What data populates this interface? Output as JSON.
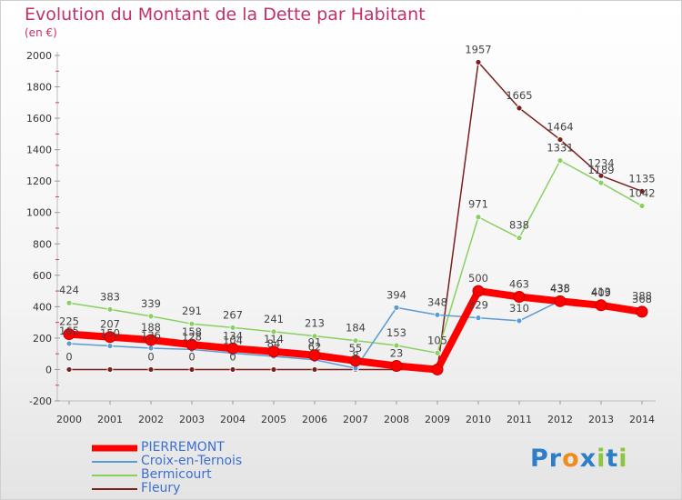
{
  "chart_data": {
    "type": "line",
    "title": "Evolution du Montant de la Dette par Habitant",
    "subtitle": "(en €)",
    "x": [
      "2000",
      "2001",
      "2002",
      "2003",
      "2004",
      "2005",
      "2006",
      "2007",
      "2008",
      "2009",
      "2010",
      "2011",
      "2012",
      "2013",
      "2014"
    ],
    "ylim": [
      -200,
      2000
    ],
    "yticks": [
      -200,
      0,
      200,
      400,
      600,
      800,
      1000,
      1200,
      1400,
      1600,
      1800,
      2000
    ],
    "grid": false,
    "legend_position": "bottom-left",
    "series": [
      {
        "name": "PIERREMONT",
        "color": "#ff0000",
        "values": [
          225,
          207,
          188,
          158,
          134,
          114,
          91,
          55,
          23,
          0,
          500,
          463,
          435,
          409,
          368
        ],
        "labels_shown": [
          true,
          true,
          true,
          true,
          true,
          true,
          true,
          true,
          true,
          false,
          true,
          true,
          true,
          true,
          true
        ]
      },
      {
        "name": "Croix-en-Ternois",
        "color": "#5a9bd5",
        "values": [
          165,
          150,
          136,
          128,
          104,
          84,
          62,
          8,
          394,
          348,
          329,
          310,
          438,
          413,
          388
        ],
        "labels_shown": [
          true,
          true,
          true,
          true,
          true,
          true,
          true,
          true,
          true,
          true,
          true,
          true,
          true,
          true,
          true
        ]
      },
      {
        "name": "Bermicourt",
        "color": "#88d060",
        "values": [
          424,
          383,
          339,
          291,
          267,
          241,
          213,
          184,
          153,
          105,
          971,
          838,
          1331,
          1189,
          1042
        ],
        "labels_shown": [
          true,
          true,
          true,
          true,
          true,
          true,
          true,
          true,
          true,
          true,
          true,
          true,
          true,
          true,
          true
        ]
      },
      {
        "name": "Fleury",
        "color": "#7a1e1e",
        "values": [
          0,
          0,
          0,
          0,
          0,
          0,
          0,
          0,
          0,
          0,
          1957,
          1665,
          1464,
          1234,
          1135
        ],
        "labels_shown": [
          true,
          false,
          true,
          true,
          true,
          false,
          false,
          false,
          false,
          false,
          true,
          true,
          true,
          true,
          true
        ]
      }
    ]
  },
  "brand": {
    "letters": [
      "P",
      "r",
      "o",
      "x",
      "i",
      "t",
      "i"
    ],
    "colors": [
      "#2e7dc9",
      "#2e7dc9",
      "#f08c1c",
      "#2e7dc9",
      "#8cc63f",
      "#2e7dc9",
      "#8cc63f"
    ]
  }
}
